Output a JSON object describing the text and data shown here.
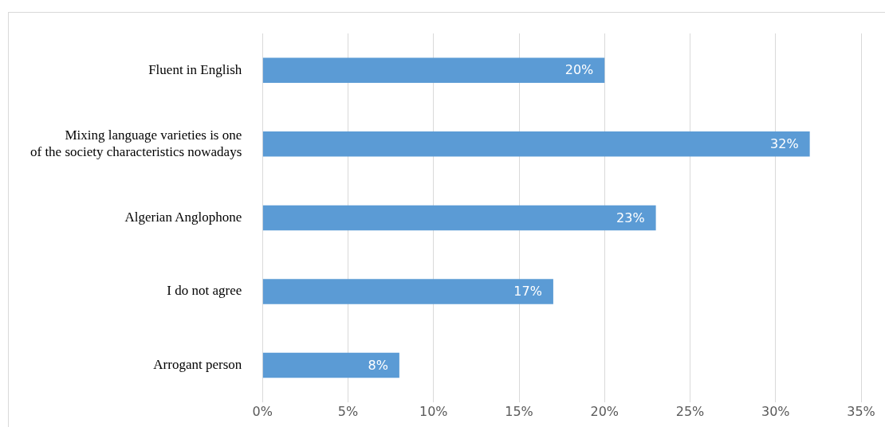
{
  "chart_data": {
    "type": "bar",
    "orientation": "horizontal",
    "categories": [
      "Fluent in English",
      "Mixing language varieties is one\nof the society characteristics nowadays",
      "Algerian Anglophone",
      "I do not agree",
      "Arrogant person"
    ],
    "values": [
      20,
      32,
      23,
      17,
      8
    ],
    "value_labels": [
      "20%",
      "32%",
      "23%",
      "17%",
      "8%"
    ],
    "color": "#5b9bd5",
    "xlim": [
      0,
      35
    ],
    "xticks": [
      {
        "value": 0,
        "label": "0%"
      },
      {
        "value": 5,
        "label": "5%"
      },
      {
        "value": 10,
        "label": "10%"
      },
      {
        "value": 15,
        "label": "15%"
      },
      {
        "value": 20,
        "label": "20%"
      },
      {
        "value": 25,
        "label": "25%"
      },
      {
        "value": 30,
        "label": "30%"
      },
      {
        "value": 35,
        "label": "35%"
      }
    ],
    "grid": "x",
    "legend": false
  }
}
